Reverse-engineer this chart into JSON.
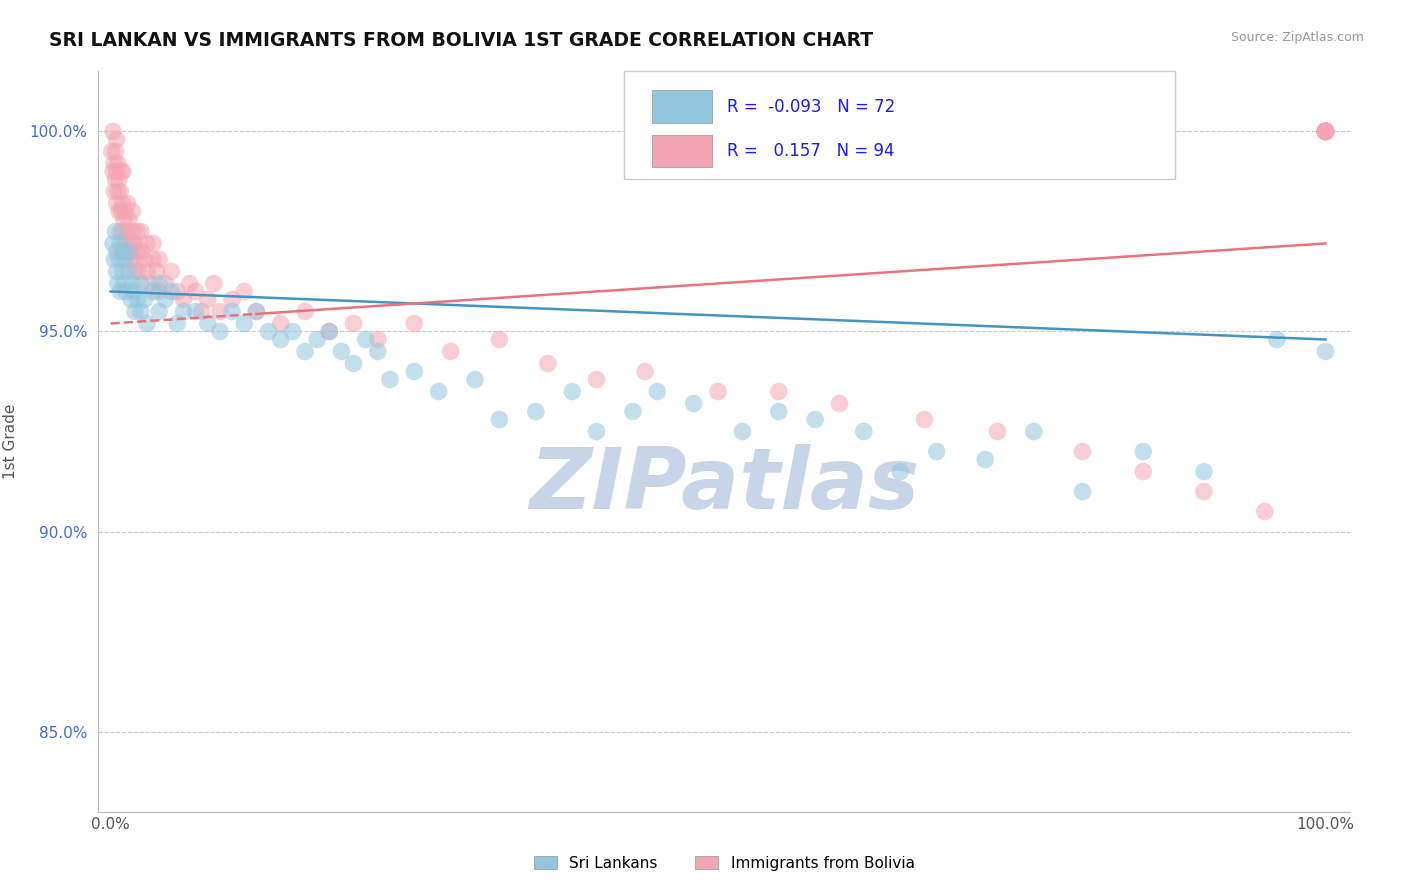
{
  "title": "SRI LANKAN VS IMMIGRANTS FROM BOLIVIA 1ST GRADE CORRELATION CHART",
  "source_text": "Source: ZipAtlas.com",
  "ylim": [
    83.0,
    101.5
  ],
  "xlim": [
    -1.0,
    102.0
  ],
  "blue_R": -0.093,
  "blue_N": 72,
  "pink_R": 0.157,
  "pink_N": 94,
  "blue_color": "#92c5de",
  "pink_color": "#f4a4b2",
  "blue_line_color": "#4393c3",
  "pink_line_color": "#e8737a",
  "grid_color": "#cccccc",
  "watermark_color": "#c8d5e8",
  "watermark_text": "ZIPatlas",
  "legend_blue_label": "Sri Lankans",
  "legend_pink_label": "Immigrants from Bolivia",
  "ytick_vals": [
    85.0,
    90.0,
    95.0,
    100.0
  ],
  "blue_trend_x0": 0,
  "blue_trend_x1": 100,
  "blue_trend_y0": 96.0,
  "blue_trend_y1": 94.8,
  "pink_trend_x0": 0,
  "pink_trend_x1": 100,
  "pink_trend_y0": 95.2,
  "pink_trend_y1": 97.2,
  "pink_dash_end_x": 12,
  "blue_scatter_x": [
    0.2,
    0.3,
    0.4,
    0.5,
    0.5,
    0.6,
    0.7,
    0.8,
    0.8,
    1.0,
    1.0,
    1.1,
    1.2,
    1.3,
    1.5,
    1.5,
    1.7,
    1.8,
    2.0,
    2.0,
    2.2,
    2.5,
    2.5,
    2.8,
    3.0,
    3.5,
    4.0,
    4.0,
    4.5,
    5.0,
    5.5,
    6.0,
    7.0,
    8.0,
    9.0,
    10.0,
    11.0,
    12.0,
    13.0,
    14.0,
    15.0,
    16.0,
    17.0,
    18.0,
    19.0,
    20.0,
    21.0,
    22.0,
    23.0,
    25.0,
    27.0,
    30.0,
    32.0,
    35.0,
    38.0,
    40.0,
    43.0,
    45.0,
    48.0,
    52.0,
    55.0,
    58.0,
    62.0,
    65.0,
    68.0,
    72.0,
    76.0,
    80.0,
    85.0,
    90.0,
    96.0,
    100.0
  ],
  "blue_scatter_y": [
    97.2,
    96.8,
    97.5,
    96.5,
    97.0,
    96.2,
    96.8,
    96.0,
    97.2,
    96.5,
    97.0,
    96.2,
    96.8,
    96.0,
    96.5,
    97.0,
    95.8,
    96.2,
    95.5,
    96.0,
    95.8,
    96.2,
    95.5,
    95.8,
    95.2,
    96.0,
    95.5,
    96.2,
    95.8,
    96.0,
    95.2,
    95.5,
    95.5,
    95.2,
    95.0,
    95.5,
    95.2,
    95.5,
    95.0,
    94.8,
    95.0,
    94.5,
    94.8,
    95.0,
    94.5,
    94.2,
    94.8,
    94.5,
    93.8,
    94.0,
    93.5,
    93.8,
    92.8,
    93.0,
    93.5,
    92.5,
    93.0,
    93.5,
    93.2,
    92.5,
    93.0,
    92.8,
    92.5,
    91.5,
    92.0,
    91.8,
    92.5,
    91.0,
    92.0,
    91.5,
    94.8,
    94.5
  ],
  "pink_scatter_x": [
    0.1,
    0.2,
    0.2,
    0.3,
    0.3,
    0.4,
    0.4,
    0.5,
    0.5,
    0.5,
    0.6,
    0.6,
    0.7,
    0.7,
    0.8,
    0.8,
    0.9,
    0.9,
    1.0,
    1.0,
    1.0,
    1.1,
    1.2,
    1.2,
    1.3,
    1.4,
    1.5,
    1.5,
    1.6,
    1.7,
    1.8,
    1.8,
    1.9,
    2.0,
    2.0,
    2.1,
    2.2,
    2.2,
    2.3,
    2.5,
    2.5,
    2.8,
    3.0,
    3.0,
    3.2,
    3.5,
    3.5,
    3.8,
    4.0,
    4.0,
    4.5,
    5.0,
    5.5,
    6.0,
    6.5,
    7.0,
    7.5,
    8.0,
    8.5,
    9.0,
    10.0,
    11.0,
    12.0,
    14.0,
    16.0,
    18.0,
    20.0,
    22.0,
    25.0,
    28.0,
    32.0,
    36.0,
    40.0,
    44.0,
    50.0,
    55.0,
    60.0,
    67.0,
    73.0,
    80.0,
    85.0,
    90.0,
    95.0,
    100.0,
    100.0,
    100.0,
    100.0,
    100.0,
    100.0,
    100.0,
    100.0,
    100.0,
    100.0,
    100.0
  ],
  "pink_scatter_y": [
    99.5,
    99.0,
    100.0,
    98.5,
    99.2,
    98.8,
    99.5,
    98.2,
    99.0,
    99.8,
    98.5,
    99.2,
    98.0,
    98.8,
    97.5,
    98.5,
    98.0,
    99.0,
    97.5,
    98.2,
    99.0,
    97.8,
    97.2,
    98.0,
    97.5,
    98.2,
    97.0,
    97.8,
    97.2,
    96.8,
    97.5,
    98.0,
    97.2,
    96.5,
    97.2,
    96.8,
    97.0,
    97.5,
    96.5,
    97.0,
    97.5,
    96.8,
    96.5,
    97.2,
    96.2,
    96.8,
    97.2,
    96.5,
    96.0,
    96.8,
    96.2,
    96.5,
    96.0,
    95.8,
    96.2,
    96.0,
    95.5,
    95.8,
    96.2,
    95.5,
    95.8,
    96.0,
    95.5,
    95.2,
    95.5,
    95.0,
    95.2,
    94.8,
    95.2,
    94.5,
    94.8,
    94.2,
    93.8,
    94.0,
    93.5,
    93.5,
    93.2,
    92.8,
    92.5,
    92.0,
    91.5,
    91.0,
    90.5,
    100.0,
    100.0,
    100.0,
    100.0,
    100.0,
    100.0,
    100.0,
    100.0,
    100.0,
    100.0,
    100.0
  ]
}
